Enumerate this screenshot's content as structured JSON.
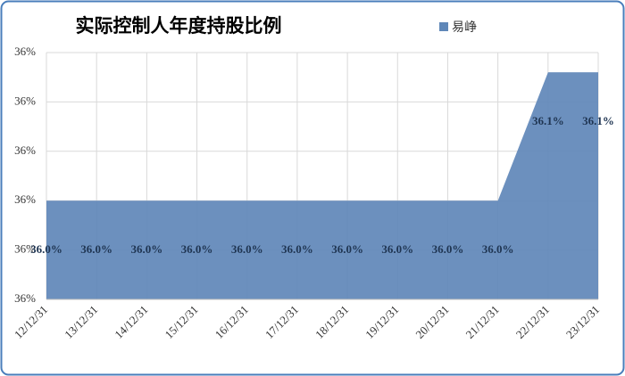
{
  "chart_data": {
    "type": "area",
    "title": "实际控制人年度持股比例",
    "categories": [
      "12/12/31",
      "13/12/31",
      "14/12/31",
      "15/12/31",
      "16/12/31",
      "17/12/31",
      "18/12/31",
      "19/12/31",
      "20/12/31",
      "21/12/31",
      "22/12/31",
      "23/12/31"
    ],
    "series": [
      {
        "name": "易峥",
        "color": "#5f87b8",
        "values": [
          36.0,
          36.0,
          36.0,
          36.0,
          36.0,
          36.0,
          36.0,
          36.0,
          36.0,
          36.0,
          36.104,
          36.104
        ],
        "value_labels": [
          "36.0%",
          "36.0%",
          "36.0%",
          "36.0%",
          "36.0%",
          "36.0%",
          "36.0%",
          "36.0%",
          "36.0%",
          "36.0%",
          "36.1%",
          "36.1%"
        ]
      }
    ],
    "ylim": [
      35.92,
      36.12
    ],
    "yticks": [
      {
        "value": 35.92,
        "label": "36%"
      },
      {
        "value": 35.96,
        "label": "36%"
      },
      {
        "value": 36.0,
        "label": "36%"
      },
      {
        "value": 36.04,
        "label": "36%"
      },
      {
        "value": 36.08,
        "label": "36%"
      },
      {
        "value": 36.12,
        "label": "36%"
      }
    ],
    "grid": true,
    "legend": "top"
  }
}
